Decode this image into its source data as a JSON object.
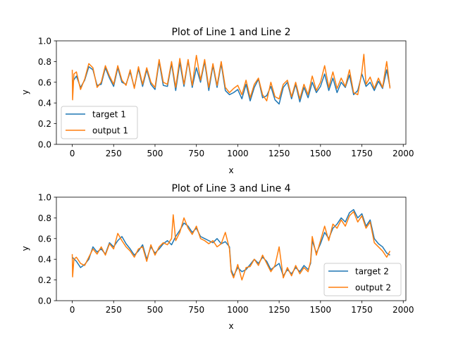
{
  "colors": {
    "series1": "#1f77b4",
    "series2": "#ff7f0e",
    "axes": "#000000",
    "background": "#ffffff"
  },
  "chart_data": [
    {
      "type": "line",
      "title": "Plot of Line 1 and Line 2",
      "xlabel": "x",
      "ylabel": "y",
      "xlim": [
        -96,
        2016
      ],
      "ylim": [
        0,
        1
      ],
      "xticks": [
        0,
        250,
        500,
        750,
        1000,
        1250,
        1500,
        1750,
        2000
      ],
      "yticks": [
        0.0,
        0.2,
        0.4,
        0.6,
        0.8,
        1.0
      ],
      "grid": false,
      "legend": "lower-left",
      "series": [
        {
          "name": "target 1",
          "x": [
            0,
            25,
            50,
            75,
            100,
            125,
            150,
            175,
            200,
            225,
            250,
            275,
            300,
            325,
            350,
            375,
            400,
            425,
            450,
            475,
            500,
            525,
            550,
            575,
            600,
            625,
            650,
            675,
            700,
            725,
            750,
            775,
            800,
            825,
            850,
            875,
            900,
            925,
            950,
            975,
            1000,
            1025,
            1050,
            1075,
            1100,
            1125,
            1150,
            1175,
            1200,
            1225,
            1250,
            1275,
            1300,
            1325,
            1350,
            1375,
            1400,
            1425,
            1450,
            1475,
            1500,
            1525,
            1550,
            1575,
            1600,
            1625,
            1650,
            1675,
            1700,
            1725,
            1750,
            1775,
            1800,
            1825,
            1850,
            1875,
            1900,
            1920
          ],
          "values": [
            0.6,
            0.66,
            0.55,
            0.62,
            0.75,
            0.72,
            0.57,
            0.58,
            0.74,
            0.64,
            0.56,
            0.74,
            0.6,
            0.58,
            0.7,
            0.55,
            0.73,
            0.56,
            0.72,
            0.58,
            0.53,
            0.8,
            0.57,
            0.56,
            0.78,
            0.52,
            0.79,
            0.56,
            0.81,
            0.55,
            0.74,
            0.6,
            0.8,
            0.52,
            0.76,
            0.55,
            0.78,
            0.52,
            0.48,
            0.5,
            0.53,
            0.44,
            0.58,
            0.42,
            0.55,
            0.63,
            0.45,
            0.47,
            0.56,
            0.43,
            0.39,
            0.55,
            0.6,
            0.44,
            0.58,
            0.41,
            0.55,
            0.45,
            0.6,
            0.5,
            0.56,
            0.68,
            0.52,
            0.64,
            0.5,
            0.6,
            0.55,
            0.67,
            0.48,
            0.52,
            0.68,
            0.56,
            0.6,
            0.52,
            0.61,
            0.54,
            0.72,
            0.55
          ]
        },
        {
          "name": "output 1",
          "x": [
            0,
            2,
            10,
            25,
            50,
            75,
            100,
            125,
            150,
            175,
            200,
            225,
            250,
            275,
            300,
            325,
            350,
            375,
            400,
            425,
            450,
            475,
            500,
            525,
            550,
            575,
            600,
            625,
            650,
            675,
            700,
            725,
            750,
            775,
            800,
            825,
            850,
            875,
            900,
            925,
            950,
            975,
            1000,
            1025,
            1050,
            1075,
            1100,
            1125,
            1150,
            1175,
            1200,
            1225,
            1250,
            1275,
            1300,
            1325,
            1350,
            1375,
            1400,
            1425,
            1450,
            1475,
            1500,
            1525,
            1550,
            1575,
            1600,
            1625,
            1650,
            1675,
            1700,
            1725,
            1750,
            1762,
            1775,
            1800,
            1825,
            1850,
            1875,
            1900,
            1920
          ],
          "values": [
            0.72,
            0.43,
            0.68,
            0.7,
            0.53,
            0.63,
            0.78,
            0.74,
            0.55,
            0.6,
            0.76,
            0.66,
            0.58,
            0.76,
            0.62,
            0.57,
            0.72,
            0.54,
            0.75,
            0.58,
            0.74,
            0.6,
            0.55,
            0.82,
            0.6,
            0.58,
            0.8,
            0.55,
            0.83,
            0.58,
            0.82,
            0.57,
            0.86,
            0.62,
            0.82,
            0.55,
            0.78,
            0.57,
            0.8,
            0.55,
            0.5,
            0.54,
            0.57,
            0.48,
            0.62,
            0.45,
            0.58,
            0.64,
            0.48,
            0.42,
            0.6,
            0.46,
            0.44,
            0.58,
            0.62,
            0.46,
            0.6,
            0.44,
            0.58,
            0.48,
            0.66,
            0.52,
            0.6,
            0.76,
            0.55,
            0.7,
            0.54,
            0.64,
            0.56,
            0.72,
            0.5,
            0.48,
            0.7,
            0.87,
            0.58,
            0.65,
            0.54,
            0.64,
            0.55,
            0.8,
            0.54
          ]
        }
      ]
    },
    {
      "type": "line",
      "title": "Plot of Line 3 and Line 4",
      "xlabel": "x",
      "ylabel": "y",
      "xlim": [
        -96,
        2016
      ],
      "ylim": [
        0,
        1
      ],
      "xticks": [
        0,
        250,
        500,
        750,
        1000,
        1250,
        1500,
        1750,
        2000
      ],
      "yticks": [
        0.0,
        0.2,
        0.4,
        0.6,
        0.8,
        1.0
      ],
      "grid": false,
      "legend": "lower-right",
      "series": [
        {
          "name": "target 2",
          "x": [
            0,
            25,
            50,
            75,
            100,
            125,
            150,
            175,
            200,
            225,
            250,
            275,
            300,
            325,
            350,
            375,
            400,
            425,
            450,
            475,
            500,
            525,
            550,
            575,
            600,
            625,
            650,
            675,
            700,
            725,
            750,
            775,
            800,
            825,
            850,
            875,
            900,
            925,
            950,
            960,
            975,
            1000,
            1025,
            1050,
            1075,
            1100,
            1125,
            1150,
            1175,
            1200,
            1225,
            1250,
            1275,
            1300,
            1325,
            1350,
            1375,
            1400,
            1425,
            1440,
            1450,
            1475,
            1500,
            1525,
            1550,
            1575,
            1600,
            1625,
            1650,
            1675,
            1700,
            1725,
            1750,
            1775,
            1800,
            1825,
            1850,
            1875,
            1900,
            1920
          ],
          "values": [
            0.42,
            0.38,
            0.32,
            0.35,
            0.4,
            0.52,
            0.47,
            0.5,
            0.45,
            0.56,
            0.52,
            0.58,
            0.62,
            0.55,
            0.5,
            0.44,
            0.48,
            0.54,
            0.4,
            0.52,
            0.46,
            0.5,
            0.55,
            0.58,
            0.54,
            0.62,
            0.68,
            0.75,
            0.72,
            0.66,
            0.7,
            0.62,
            0.6,
            0.58,
            0.56,
            0.6,
            0.55,
            0.57,
            0.52,
            0.3,
            0.24,
            0.32,
            0.28,
            0.3,
            0.35,
            0.4,
            0.36,
            0.42,
            0.38,
            0.3,
            0.33,
            0.36,
            0.24,
            0.3,
            0.26,
            0.32,
            0.28,
            0.34,
            0.3,
            0.36,
            0.58,
            0.46,
            0.55,
            0.66,
            0.6,
            0.7,
            0.74,
            0.8,
            0.76,
            0.85,
            0.88,
            0.8,
            0.84,
            0.72,
            0.78,
            0.6,
            0.55,
            0.52,
            0.46,
            0.44
          ]
        },
        {
          "name": "output 2",
          "x": [
            0,
            2,
            10,
            25,
            50,
            75,
            100,
            125,
            150,
            175,
            200,
            225,
            250,
            275,
            300,
            325,
            350,
            375,
            400,
            425,
            450,
            475,
            500,
            525,
            550,
            575,
            600,
            610,
            625,
            650,
            675,
            700,
            725,
            750,
            775,
            800,
            825,
            850,
            875,
            900,
            925,
            950,
            960,
            975,
            1000,
            1025,
            1050,
            1075,
            1100,
            1125,
            1150,
            1175,
            1200,
            1225,
            1250,
            1275,
            1300,
            1325,
            1350,
            1375,
            1400,
            1425,
            1440,
            1450,
            1475,
            1500,
            1525,
            1550,
            1575,
            1600,
            1625,
            1650,
            1675,
            1700,
            1725,
            1750,
            1775,
            1800,
            1825,
            1850,
            1875,
            1900,
            1920
          ],
          "values": [
            0.45,
            0.23,
            0.4,
            0.42,
            0.36,
            0.34,
            0.42,
            0.5,
            0.45,
            0.52,
            0.44,
            0.55,
            0.5,
            0.65,
            0.58,
            0.52,
            0.48,
            0.42,
            0.5,
            0.52,
            0.38,
            0.54,
            0.44,
            0.52,
            0.56,
            0.54,
            0.6,
            0.83,
            0.58,
            0.66,
            0.8,
            0.7,
            0.64,
            0.72,
            0.6,
            0.58,
            0.55,
            0.58,
            0.52,
            0.55,
            0.66,
            0.5,
            0.28,
            0.22,
            0.35,
            0.2,
            0.32,
            0.33,
            0.4,
            0.34,
            0.44,
            0.36,
            0.28,
            0.34,
            0.52,
            0.22,
            0.32,
            0.24,
            0.34,
            0.26,
            0.32,
            0.28,
            0.38,
            0.62,
            0.44,
            0.58,
            0.72,
            0.58,
            0.74,
            0.7,
            0.78,
            0.72,
            0.82,
            0.86,
            0.76,
            0.82,
            0.7,
            0.76,
            0.56,
            0.52,
            0.48,
            0.42,
            0.48
          ]
        }
      ]
    }
  ]
}
